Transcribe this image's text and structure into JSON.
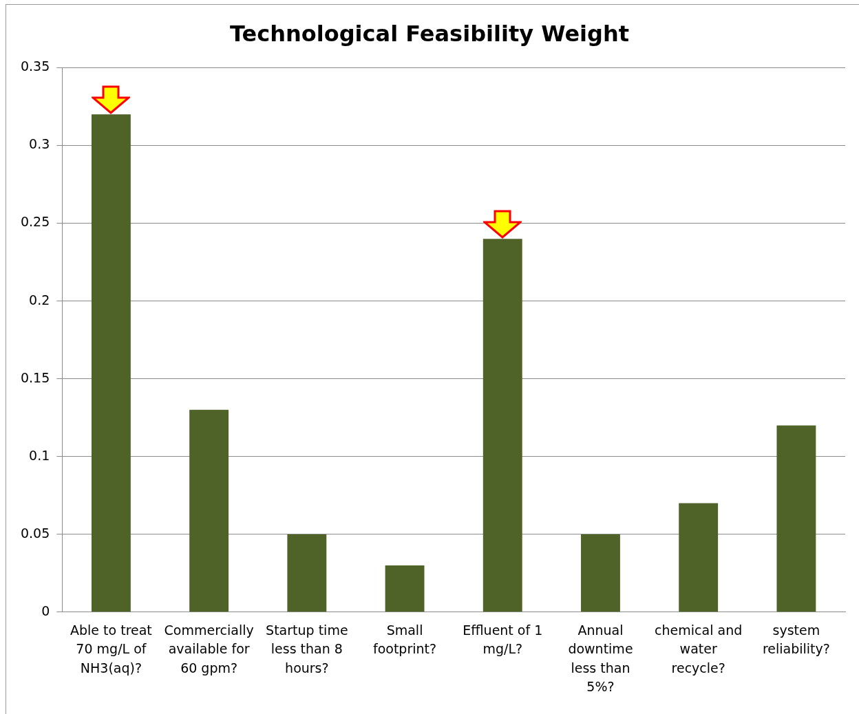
{
  "chart_data": {
    "type": "bar",
    "title": "Technological Feasibility Weight",
    "categories": [
      "Able to treat 70 mg/L of NH3(aq)?",
      "Commercially available for 60 gpm?",
      "Startup time less than 8 hours?",
      "Small footprint?",
      "Effluent of 1 mg/L?",
      "Annual downtime less than 5%?",
      "chemical and water recycle?",
      "system reliability?"
    ],
    "values": [
      0.32,
      0.13,
      0.05,
      0.03,
      0.24,
      0.05,
      0.07,
      0.12
    ],
    "color": "#4f6228",
    "ylim": [
      0,
      0.35
    ],
    "yticks": [
      0,
      0.05,
      0.1,
      0.15,
      0.2,
      0.25,
      0.3,
      0.35
    ],
    "grid": "y"
  }
}
